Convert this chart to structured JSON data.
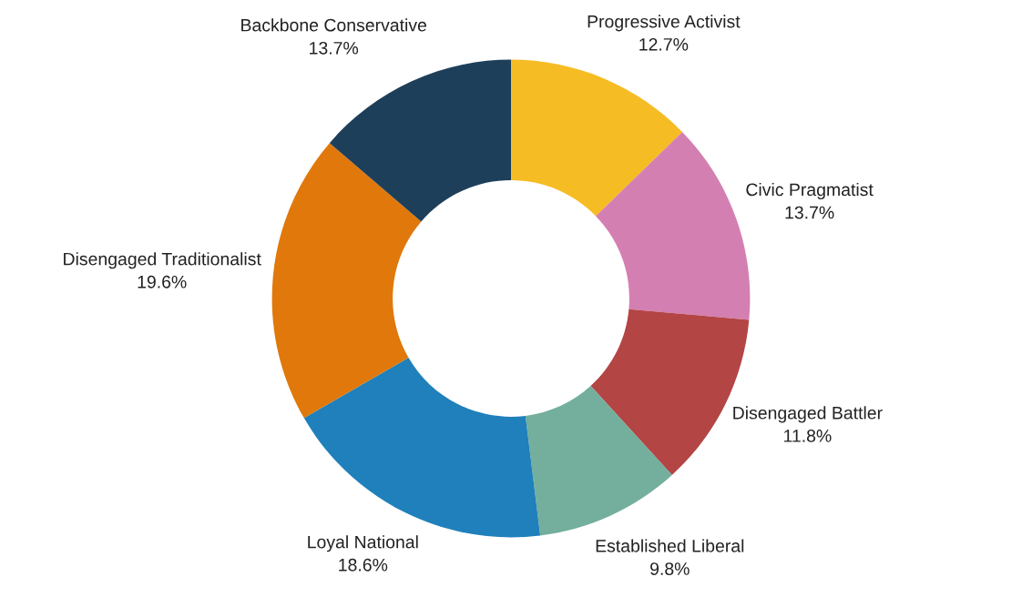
{
  "chart_data": {
    "type": "donut",
    "categories": [
      "Progressive Activist",
      "Civic Pragmatist",
      "Disengaged Battler",
      "Established Liberal",
      "Loyal National",
      "Disengaged Traditionalist",
      "Backbone Conservative"
    ],
    "values": [
      12.7,
      13.7,
      11.8,
      9.8,
      18.6,
      19.6,
      13.7
    ],
    "value_labels": [
      "12.7%",
      "13.7%",
      "11.8%",
      "9.8%",
      "18.6%",
      "19.6%",
      "13.7%"
    ],
    "colors": [
      "#f6bc23",
      "#d47fb2",
      "#b34545",
      "#73af9c",
      "#1f80bb",
      "#e0780b",
      "#1e3f5a"
    ],
    "legend": false
  }
}
